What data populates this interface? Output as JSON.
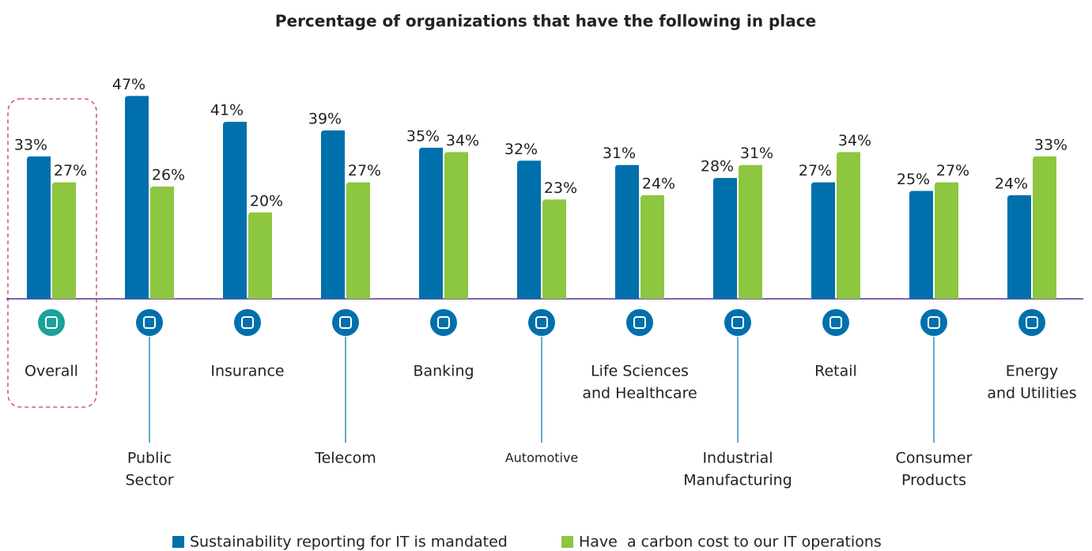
{
  "chart_data": {
    "type": "bar",
    "title": "Percentage of organizations that have the following in place",
    "categories": [
      [
        "Overall"
      ],
      [
        "Public",
        "Sector"
      ],
      [
        "Insurance"
      ],
      [
        "Telecom"
      ],
      [
        "Banking"
      ],
      [
        "Automotive"
      ],
      [
        "Life Sciences",
        "and Healthcare"
      ],
      [
        "Industrial",
        "Manufacturing"
      ],
      [
        "Retail"
      ],
      [
        "Consumer",
        "Products"
      ],
      [
        "Energy",
        "and Utilities"
      ]
    ],
    "series": [
      {
        "name": "Sustainability reporting for IT is mandated",
        "color": "#0070ad",
        "values": [
          33,
          47,
          41,
          39,
          35,
          32,
          31,
          28,
          27,
          25,
          24
        ],
        "value_labels": [
          "33%",
          "47%",
          "41%",
          "39%",
          "35%",
          "32%",
          "31%",
          "28%",
          "27%",
          "25%",
          "24%"
        ]
      },
      {
        "name": "Have  a carbon cost to our IT operations",
        "color": "#8dc63f",
        "values": [
          27,
          26,
          20,
          27,
          34,
          23,
          24,
          31,
          34,
          27,
          33
        ],
        "value_labels": [
          "27%",
          "26%",
          "20%",
          "27%",
          "34%",
          "23%",
          "24%",
          "31%",
          "34%",
          "27%",
          "33%"
        ]
      }
    ],
    "ylim": [
      0,
      50
    ],
    "legend": "bottom"
  }
}
